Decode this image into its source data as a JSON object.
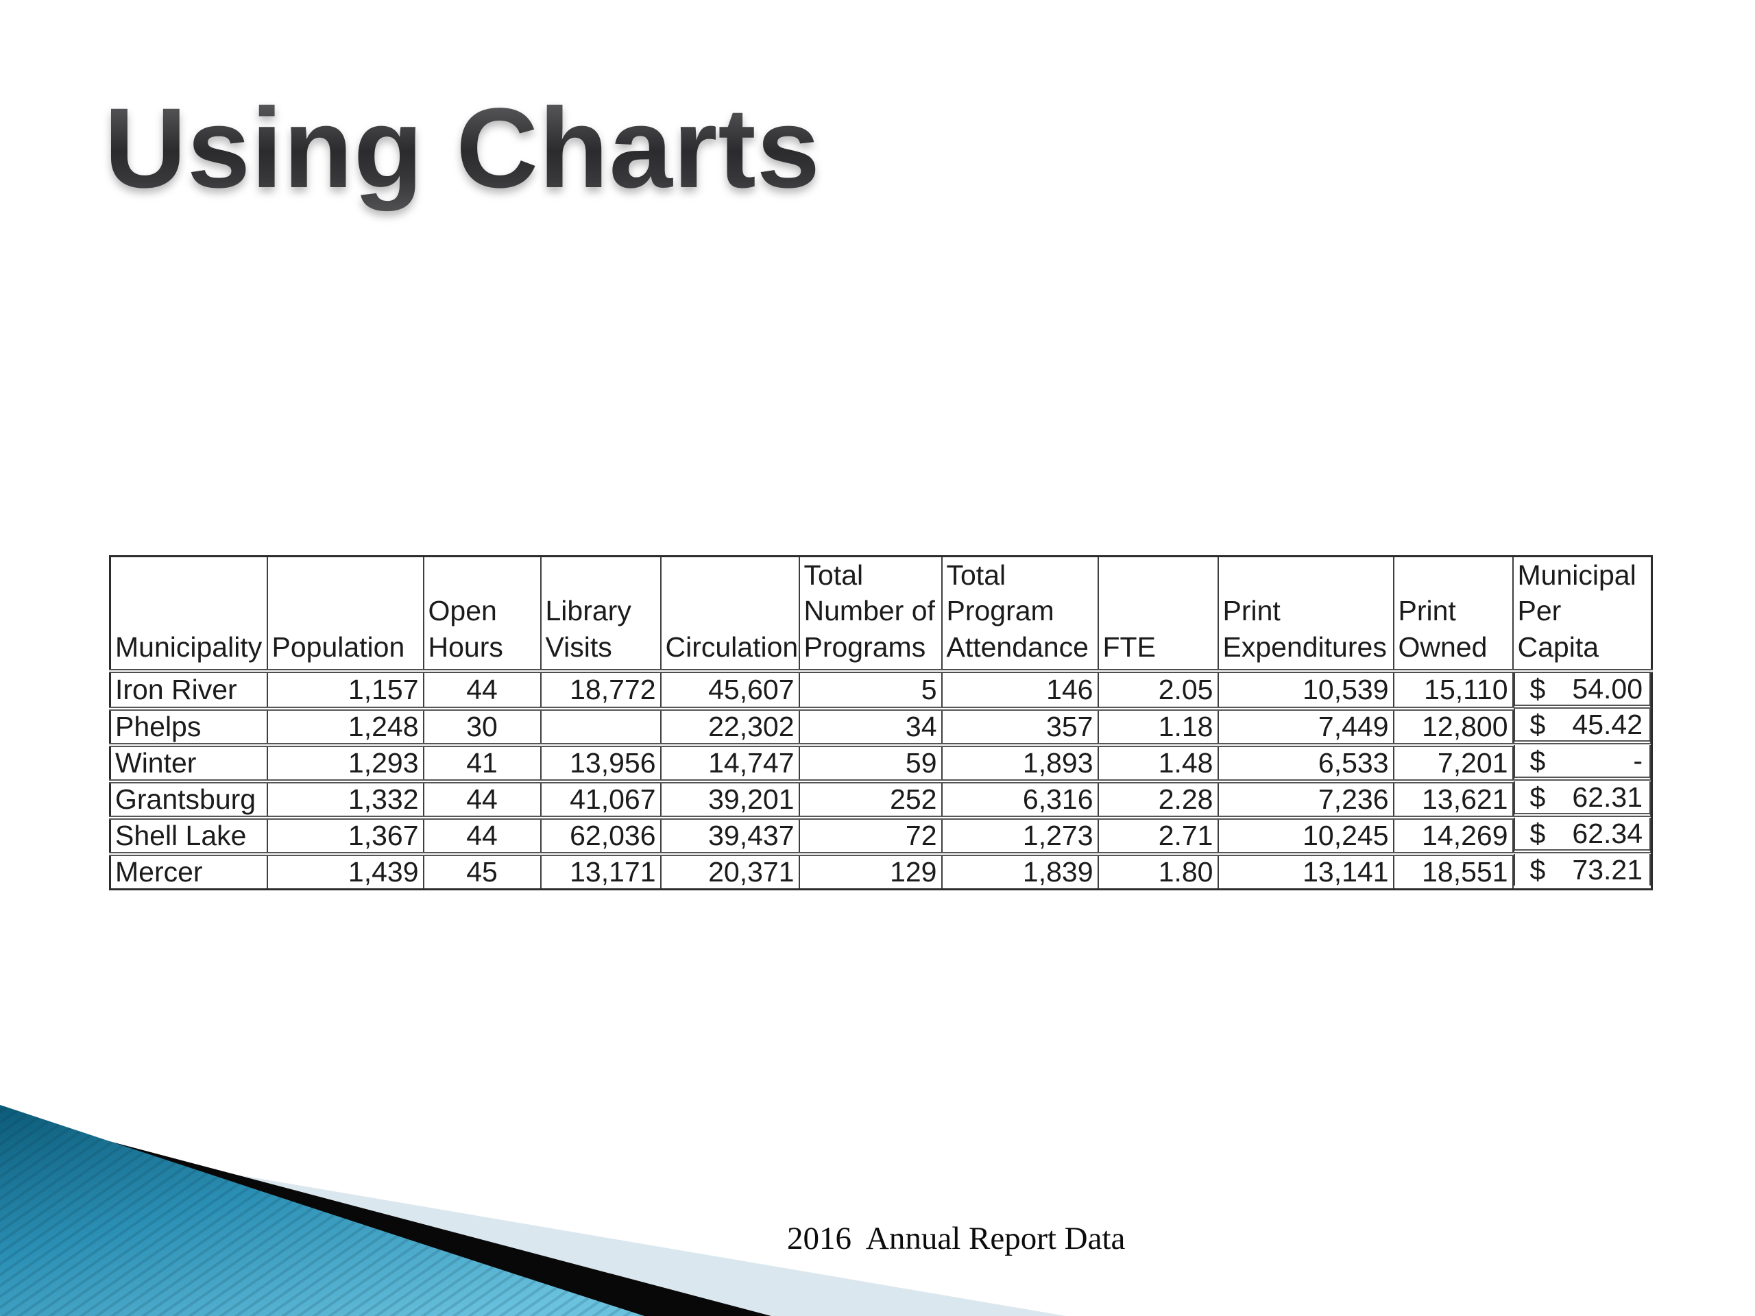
{
  "slide": {
    "title": "Using Charts",
    "footer_caption": "2016  Annual Report Data",
    "background_color": "#ffffff"
  },
  "table": {
    "currency_symbol": "$",
    "columns": [
      {
        "key": "municipality",
        "header": "Municipality",
        "align": "left"
      },
      {
        "key": "population",
        "header": "Population",
        "align": "right"
      },
      {
        "key": "open_hours",
        "header": "Open\nHours",
        "align": "center"
      },
      {
        "key": "library_visits",
        "header": "Library\nVisits",
        "align": "right"
      },
      {
        "key": "circulation",
        "header": "Circulation",
        "align": "right"
      },
      {
        "key": "total_programs",
        "header": "Total\nNumber of\nPrograms",
        "align": "right"
      },
      {
        "key": "program_attendance",
        "header": "Total\nProgram\nAttendance",
        "align": "right"
      },
      {
        "key": "fte",
        "header": "FTE",
        "align": "right"
      },
      {
        "key": "print_expenditures",
        "header": "Print\nExpenditures",
        "align": "right"
      },
      {
        "key": "print_owned",
        "header": "Print\nOwned",
        "align": "right"
      },
      {
        "key": "per_capita",
        "header": "Municipal\nPer Capita",
        "align": "currency"
      }
    ],
    "rows": [
      {
        "municipality": "Iron River",
        "population": "1,157",
        "open_hours": "44",
        "library_visits": "18,772",
        "circulation": "45,607",
        "total_programs": "5",
        "program_attendance": "146",
        "fte": "2.05",
        "print_expenditures": "10,539",
        "print_owned": "15,110",
        "per_capita": "54.00"
      },
      {
        "municipality": "Phelps",
        "population": "1,248",
        "open_hours": "30",
        "library_visits": "",
        "circulation": "22,302",
        "total_programs": "34",
        "program_attendance": "357",
        "fte": "1.18",
        "print_expenditures": "7,449",
        "print_owned": "12,800",
        "per_capita": "45.42"
      },
      {
        "municipality": "Winter",
        "population": "1,293",
        "open_hours": "41",
        "library_visits": "13,956",
        "circulation": "14,747",
        "total_programs": "59",
        "program_attendance": "1,893",
        "fte": "1.48",
        "print_expenditures": "6,533",
        "print_owned": "7,201",
        "per_capita": "-"
      },
      {
        "municipality": "Grantsburg",
        "population": "1,332",
        "open_hours": "44",
        "library_visits": "41,067",
        "circulation": "39,201",
        "total_programs": "252",
        "program_attendance": "6,316",
        "fte": "2.28",
        "print_expenditures": "7,236",
        "print_owned": "13,621",
        "per_capita": "62.31"
      },
      {
        "municipality": "Shell Lake",
        "population": "1,367",
        "open_hours": "44",
        "library_visits": "62,036",
        "circulation": "39,437",
        "total_programs": "72",
        "program_attendance": "1,273",
        "fte": "2.71",
        "print_expenditures": "10,245",
        "print_owned": "14,269",
        "per_capita": "62.34"
      },
      {
        "municipality": "Mercer",
        "population": "1,439",
        "open_hours": "45",
        "library_visits": "13,171",
        "circulation": "20,371",
        "total_programs": "129",
        "program_attendance": "1,839",
        "fte": "1.80",
        "print_expenditures": "13,141",
        "print_owned": "18,551",
        "per_capita": "73.21"
      }
    ]
  },
  "decoration": {
    "teal_dark": "#0c5a78",
    "teal_mid": "#2b8fb4",
    "teal_light": "#6ac2de",
    "stripe_color": "rgba(6,54,74,0.16)",
    "black_band": "#080808",
    "pale_band": "#dbe7ee"
  }
}
